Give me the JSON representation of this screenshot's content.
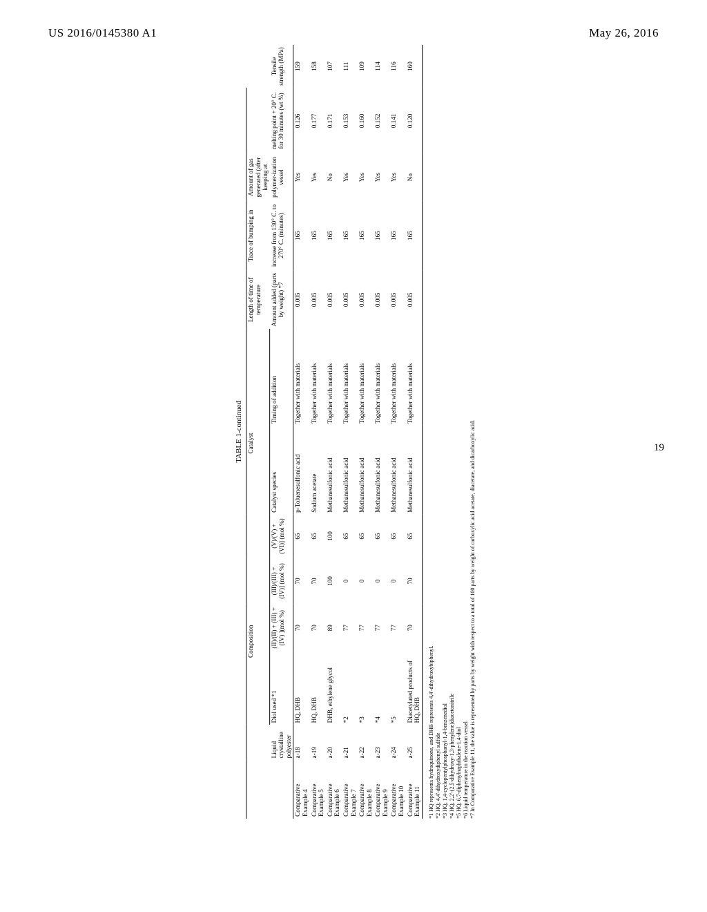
{
  "header": {
    "left": "US 2016/0145380 A1",
    "right": "May 26, 2016",
    "pagenum": "19"
  },
  "table": {
    "caption": "TABLE 1-continued",
    "group_headers": {
      "composition": "Composition",
      "catalyst": "Catalyst",
      "length": "Length of time of temperature",
      "trace": "Trace of bumping in",
      "amount_gas": "Amount of gas generated (after keeping at"
    },
    "col_headers": {
      "liquid": "Liquid crystalline polyester",
      "diol": "Diol used *1",
      "c1": "(II)/(II) + (III) + (IV) ](mol %)",
      "c2": "(III)/(III) + (IV)] (mol %)",
      "c3": "(V)/(V) + (VI)] (mol %)",
      "cat_species": "Catalyst species",
      "timing": "Timing of addition",
      "amount_added": "Amount added (parts by weight) *7",
      "increase": "increase from 130° C. to 270° C. (minutes)",
      "polymer": "polymer-ization vessel",
      "melting": "melting point + 20° C. for 30 minutes (wt %)",
      "tensile": "Tensile strength (MPa)"
    },
    "rows": [
      {
        "ex": "Comparative Example 4",
        "lcp": "a-18",
        "diol": "HQ, DHB",
        "c1": "70",
        "c2": "70",
        "c3": "65",
        "cat": "p-Toluenesulfonic acid",
        "timing": "Together with materials",
        "amt": "0.005",
        "inc": "165",
        "poly": "Yes",
        "melt": "0.126",
        "ten": "159"
      },
      {
        "ex": "Comparative Example 5",
        "lcp": "a-19",
        "diol": "HQ, DHB",
        "c1": "70",
        "c2": "70",
        "c3": "65",
        "cat": "Sodium acetate",
        "timing": "Together with materials",
        "amt": "0.005",
        "inc": "165",
        "poly": "Yes",
        "melt": "0.177",
        "ten": "158"
      },
      {
        "ex": "Comparative Example 6",
        "lcp": "a-20",
        "diol": "DHB, ethylene glycol",
        "c1": "89",
        "c2": "100",
        "c3": "100",
        "cat": "Methanesulfonic acid",
        "timing": "Together with materials",
        "amt": "0.005",
        "inc": "165",
        "poly": "No",
        "melt": "0.171",
        "ten": "107"
      },
      {
        "ex": "Comparative Example 7",
        "lcp": "a-21",
        "diol": "*2",
        "c1": "77",
        "c2": "0",
        "c3": "65",
        "cat": "Methanesulfonic acid",
        "timing": "Together with materials",
        "amt": "0.005",
        "inc": "165",
        "poly": "Yes",
        "melt": "0.153",
        "ten": "111"
      },
      {
        "ex": "Comparative Example 8",
        "lcp": "a-22",
        "diol": "*3",
        "c1": "77",
        "c2": "0",
        "c3": "65",
        "cat": "Methanesulfonic acid",
        "timing": "Together with materials",
        "amt": "0.005",
        "inc": "165",
        "poly": "Yes",
        "melt": "0.160",
        "ten": "109"
      },
      {
        "ex": "Comparative Example 9",
        "lcp": "a-23",
        "diol": "*4",
        "c1": "77",
        "c2": "0",
        "c3": "65",
        "cat": "Methanesulfonic acid",
        "timing": "Together with materials",
        "amt": "0.005",
        "inc": "165",
        "poly": "Yes",
        "melt": "0.152",
        "ten": "114"
      },
      {
        "ex": "Comparative Example 10",
        "lcp": "a-24",
        "diol": "*5",
        "c1": "77",
        "c2": "0",
        "c3": "65",
        "cat": "Methanesulfonic acid",
        "timing": "Together with materials",
        "amt": "0.005",
        "inc": "165",
        "poly": "Yes",
        "melt": "0.141",
        "ten": "116"
      },
      {
        "ex": "Comparative Example 11",
        "lcp": "a-25",
        "diol": "Diacetylated products of HQ, DHB",
        "c1": "70",
        "c2": "70",
        "c3": "65",
        "cat": "Methanesulfonic acid",
        "timing": "Together with materials",
        "amt": "0.005",
        "inc": "165",
        "poly": "No",
        "melt": "0.120",
        "ten": "160"
      }
    ],
    "footnotes": [
      "*1 HQ represents hydroquinone, and DHB represents 4,4'-dihydroxybiphenyl.",
      "*2 HQ, 4,4'-dihydroxydiphenyl sulfide",
      "*3 HQ, 1,4-cyclopentylphosphonyl-1,4-benzenediol",
      "*4 HQ, 2,2'-(2,5-dihydroxy-1,3-phenylene)diacetonitrile",
      "*5 HQ, 6,7-diphenylnaphthalene-1,4-diol",
      "*6 Liquid temperature in the reaction vessel",
      "*7 In Comparative Example 11, the value is represented by parts by weight with respect to a total of 100 parts by weight of carboxylic acid acetate, diacetate, and dicarboxylic acid."
    ]
  }
}
